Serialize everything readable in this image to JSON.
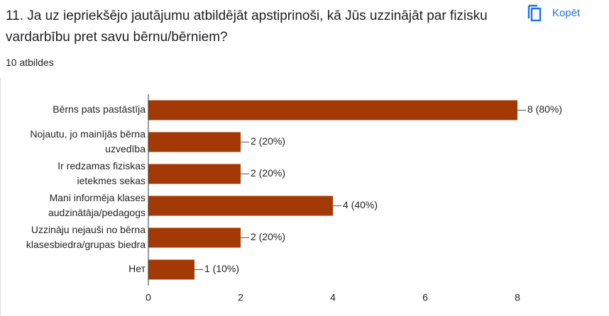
{
  "title": "11. Ja uz iepriekšējo jautājumu atbildējāt apstiprinoši, kā Jūs uzzinājāt par fizisku vardarbību pret savu bērnu/bērniem?",
  "copy_button": "Kopēt",
  "response_count": "10 atbildes",
  "chart_data": {
    "type": "hbar",
    "categories": [
      "Bērns pats pastāstīja",
      "Nojautu, jo mainījās bērna\nuzvedība",
      "Ir redzamas fiziskas\nietekmes sekas",
      "Mani informēja klases\naudzinātāja/pedagogs",
      "Uzzināju nejauši no bērna\nklasesbiedra/grupas biedra",
      "Нет"
    ],
    "values": [
      8,
      2,
      2,
      4,
      2,
      1
    ],
    "value_labels": [
      "8 (80%)",
      "2 (20%)",
      "2 (20%)",
      "4 (40%)",
      "2 (20%)",
      "1 (10%)"
    ],
    "color": "#a33a06",
    "xlim": [
      0,
      8
    ],
    "xticks": [
      0,
      2,
      4,
      6,
      8
    ]
  }
}
